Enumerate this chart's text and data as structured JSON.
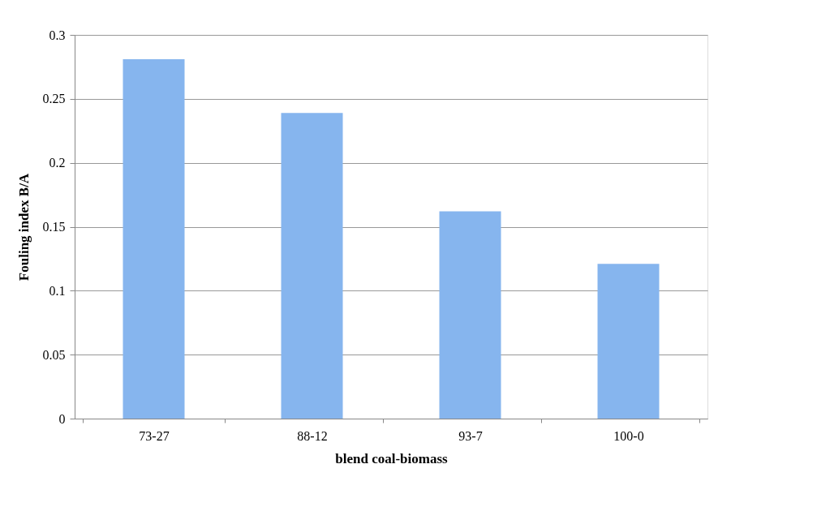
{
  "chart_data": {
    "type": "bar",
    "xlabel": "blend coal-biomass",
    "ylabel": "Fouling index B/A",
    "categories": [
      "73-27",
      "88-12",
      "93-7",
      "100-0"
    ],
    "series": [
      {
        "color": "#86b5ee",
        "values": [
          0.281,
          0.239,
          0.162,
          0.121
        ]
      }
    ],
    "ylim": [
      0,
      0.3
    ],
    "yticks": [
      0,
      0.05,
      0.1,
      0.15,
      0.2,
      0.25,
      0.3
    ],
    "grid": "y",
    "legend": false
  }
}
